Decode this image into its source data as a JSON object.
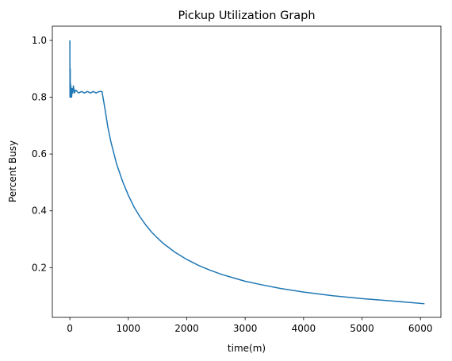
{
  "chart_data": {
    "type": "line",
    "title": "Pickup Utilization Graph",
    "xlabel": "time(m)",
    "ylabel": "Percent Busy",
    "xlim": [
      -300,
      6350
    ],
    "ylim": [
      0.025,
      1.05
    ],
    "xticks": [
      0,
      1000,
      2000,
      3000,
      4000,
      5000,
      6000
    ],
    "xtick_labels": [
      "0",
      "1000",
      "2000",
      "3000",
      "4000",
      "5000",
      "6000"
    ],
    "yticks": [
      0.2,
      0.4,
      0.6,
      0.8,
      1.0
    ],
    "ytick_labels": [
      "0.2",
      "0.4",
      "0.6",
      "0.8",
      "1.0"
    ],
    "grid": false,
    "series": [
      {
        "color": "#1f77b4",
        "x": [
          0,
          2,
          4,
          6,
          8,
          10,
          14,
          18,
          22,
          26,
          30,
          40,
          50,
          60,
          80,
          100,
          150,
          200,
          250,
          300,
          350,
          400,
          450,
          500,
          550,
          600,
          650,
          700,
          800,
          900,
          1000,
          1100,
          1200,
          1300,
          1400,
          1500,
          1600,
          1800,
          2000,
          2200,
          2400,
          2600,
          2800,
          3000,
          3300,
          3600,
          4000,
          4500,
          5000,
          5500,
          6070
        ],
        "y": [
          1.0,
          0.8,
          0.83,
          0.9,
          0.81,
          0.85,
          0.8,
          0.84,
          0.81,
          0.83,
          0.8,
          0.83,
          0.815,
          0.84,
          0.815,
          0.825,
          0.815,
          0.82,
          0.815,
          0.82,
          0.815,
          0.82,
          0.815,
          0.82,
          0.82,
          0.76,
          0.695,
          0.645,
          0.565,
          0.505,
          0.455,
          0.413,
          0.379,
          0.35,
          0.325,
          0.304,
          0.285,
          0.254,
          0.229,
          0.208,
          0.191,
          0.176,
          0.164,
          0.152,
          0.139,
          0.127,
          0.114,
          0.101,
          0.091,
          0.083,
          0.073
        ]
      }
    ]
  }
}
